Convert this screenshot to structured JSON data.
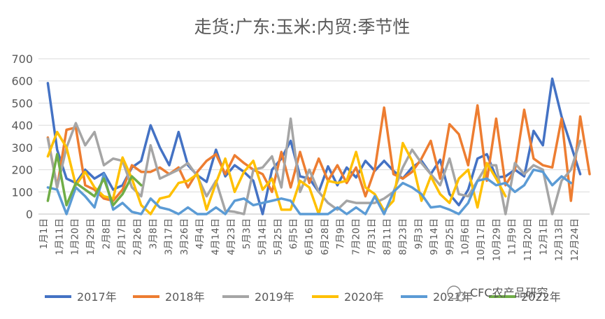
{
  "chart_data": {
    "type": "line",
    "title": "走货:广东:玉米:内贸:季节性",
    "xlabel": "",
    "ylabel": "",
    "ylim": [
      0,
      700
    ],
    "yticks": [
      0,
      100,
      200,
      300,
      400,
      500,
      600,
      700
    ],
    "grid": true,
    "legend_position": "bottom",
    "x_tick_labels": [
      "1月1日",
      "1月11日",
      "1月20日",
      "1月29日",
      "2月8日",
      "2月17日",
      "2月26日",
      "3月8日",
      "3月17日",
      "3月26日",
      "4月4日",
      "4月14日",
      "4月23日",
      "5月3日",
      "5月14日",
      "5月25日",
      "6月5日",
      "6月16日",
      "6月28日",
      "7月9日",
      "7月20日",
      "7月31日",
      "8月11日",
      "8月23日",
      "9月3日",
      "9月14日",
      "9月25日",
      "10月6日",
      "10月17日",
      "10月29日",
      "11月9日",
      "11月20日",
      "12月1日",
      "12月13日",
      "12月24日"
    ],
    "series": [
      {
        "name": "2017年",
        "color": "#4472C4",
        "values": [
          null,
          590,
          290,
          160,
          140,
          200,
          160,
          185,
          110,
          130,
          210,
          240,
          400,
          300,
          220,
          370,
          220,
          175,
          145,
          290,
          170,
          220,
          190,
          150,
          0,
          200,
          250,
          330,
          170,
          160,
          100,
          215,
          130,
          210,
          165,
          240,
          195,
          240,
          195,
          160,
          210,
          240,
          180,
          245,
          90,
          40,
          110,
          250,
          270,
          165,
          170,
          200,
          170,
          375,
          310,
          610,
          440,
          310,
          180
        ]
      },
      {
        "name": "2018年",
        "color": "#ED7D31",
        "values": [
          null,
          345,
          120,
          380,
          390,
          130,
          110,
          70,
          60,
          110,
          220,
          190,
          190,
          210,
          180,
          210,
          120,
          190,
          240,
          270,
          180,
          265,
          230,
          200,
          180,
          100,
          280,
          120,
          280,
          140,
          250,
          150,
          220,
          140,
          210,
          80,
          200,
          480,
          180,
          160,
          190,
          250,
          330,
          160,
          405,
          360,
          220,
          490,
          150,
          430,
          130,
          200,
          470,
          250,
          220,
          210,
          430,
          60,
          440,
          180
        ]
      },
      {
        "name": "2019年",
        "color": "#A5A5A5",
        "values": [
          null,
          340,
          120,
          300,
          410,
          310,
          370,
          220,
          250,
          240,
          120,
          80,
          310,
          160,
          180,
          200,
          230,
          170,
          80,
          150,
          15,
          10,
          0,
          200,
          210,
          260,
          120,
          430,
          100,
          200,
          100,
          50,
          20,
          60,
          50,
          50,
          50,
          70,
          100,
          210,
          290,
          230,
          180,
          130,
          250,
          90,
          80,
          150,
          220,
          220,
          0,
          230,
          180,
          220,
          200,
          0,
          150,
          200,
          330
        ]
      },
      {
        "name": "2020年",
        "color": "#FFC000",
        "values": [
          null,
          260,
          370,
          300,
          130,
          190,
          120,
          80,
          70,
          255,
          160,
          40,
          0,
          70,
          80,
          140,
          150,
          180,
          20,
          140,
          250,
          100,
          190,
          240,
          110,
          160,
          20,
          20,
          150,
          120,
          0,
          150,
          140,
          150,
          280,
          120,
          90,
          15,
          60,
          320,
          240,
          60,
          170,
          90,
          50,
          160,
          200,
          30,
          230,
          160,
          80
        ]
      },
      {
        "name": "2021年",
        "color": "#5B9BD5",
        "values": [
          null,
          120,
          110,
          0,
          120,
          80,
          30,
          180,
          20,
          50,
          10,
          0,
          70,
          30,
          20,
          0,
          30,
          0,
          0,
          30,
          0,
          60,
          70,
          40,
          50,
          60,
          70,
          60,
          0,
          0,
          0,
          0,
          30,
          0,
          30,
          0,
          80,
          0,
          100,
          140,
          120,
          90,
          30,
          35,
          20,
          0,
          50,
          150,
          160,
          130,
          140,
          100,
          130,
          200,
          190,
          130,
          170,
          140
        ]
      },
      {
        "name": "2022年",
        "color": "#70AD47",
        "values": [
          null,
          60,
          270,
          40,
          140,
          110,
          80,
          160,
          40,
          90,
          170,
          130
        ]
      }
    ]
  },
  "watermark": "CFC农产品研究"
}
